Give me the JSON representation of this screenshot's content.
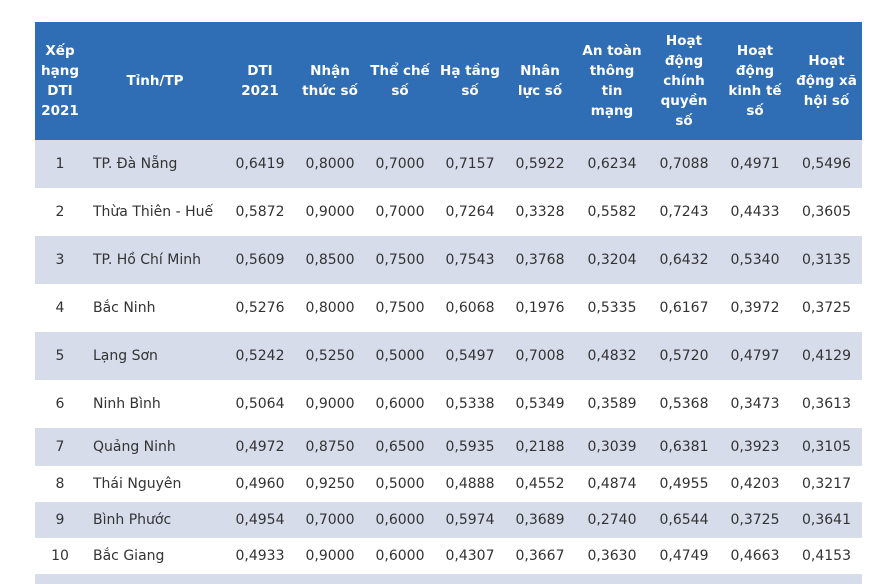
{
  "headers": [
    "Xếp\nhạng\nDTI\n2021",
    "Tỉnh/TP",
    "DTI\n2021",
    "Nhận\nthức số",
    "Thể chế\nsố",
    "Hạ tầng\nsố",
    "Nhân\nlực số",
    "An toàn\nthông\ntin\nmạng",
    "Hoạt\nđộng\nchính\nquyền\nsố",
    "Hoạt\nđộng\nkinh tế\nsố",
    "Hoạt\nđộng xã\nhội số"
  ],
  "rows": [
    [
      "1",
      "TP. Đà Nẵng",
      "0,6419",
      "0,8000",
      "0,7000",
      "0,7157",
      "0,5922",
      "0,6234",
      "0,7088",
      "0,4971",
      "0,5496"
    ],
    [
      "2",
      "Thừa Thiên - Huế",
      "0,5872",
      "0,9000",
      "0,7000",
      "0,7264",
      "0,3328",
      "0,5582",
      "0,7243",
      "0,4433",
      "0,3605"
    ],
    [
      "3",
      "TP. Hồ Chí Minh",
      "0,5609",
      "0,8500",
      "0,7500",
      "0,7543",
      "0,3768",
      "0,3204",
      "0,6432",
      "0,5340",
      "0,3135"
    ],
    [
      "4",
      "Bắc Ninh",
      "0,5276",
      "0,8000",
      "0,7500",
      "0,6068",
      "0,1976",
      "0,5335",
      "0,6167",
      "0,3972",
      "0,3725"
    ],
    [
      "5",
      "Lạng Sơn",
      "0,5242",
      "0,5250",
      "0,5000",
      "0,5497",
      "0,7008",
      "0,4832",
      "0,5720",
      "0,4797",
      "0,4129"
    ],
    [
      "6",
      "Ninh Bình",
      "0,5064",
      "0,9000",
      "0,6000",
      "0,5338",
      "0,5349",
      "0,3589",
      "0,5368",
      "0,3473",
      "0,3613"
    ],
    [
      "7",
      "Quảng Ninh",
      "0,4972",
      "0,8750",
      "0,6500",
      "0,5935",
      "0,2188",
      "0,3039",
      "0,6381",
      "0,3923",
      "0,3105"
    ],
    [
      "8",
      "Thái Nguyên",
      "0,4960",
      "0,9250",
      "0,5000",
      "0,4888",
      "0,4552",
      "0,4874",
      "0,4955",
      "0,4203",
      "0,3217"
    ],
    [
      "9",
      "Bình Phước",
      "0,4954",
      "0,7000",
      "0,6000",
      "0,5974",
      "0,3689",
      "0,2740",
      "0,6544",
      "0,3725",
      "0,3641"
    ],
    [
      "10",
      "Bắc Giang",
      "0,4933",
      "0,9000",
      "0,6000",
      "0,4307",
      "0,3667",
      "0,3630",
      "0,4749",
      "0,4663",
      "0,4153"
    ]
  ],
  "colors": {
    "header_bg": "#2f6db5",
    "row_shade": "#d6dcea",
    "text": "#333333"
  }
}
